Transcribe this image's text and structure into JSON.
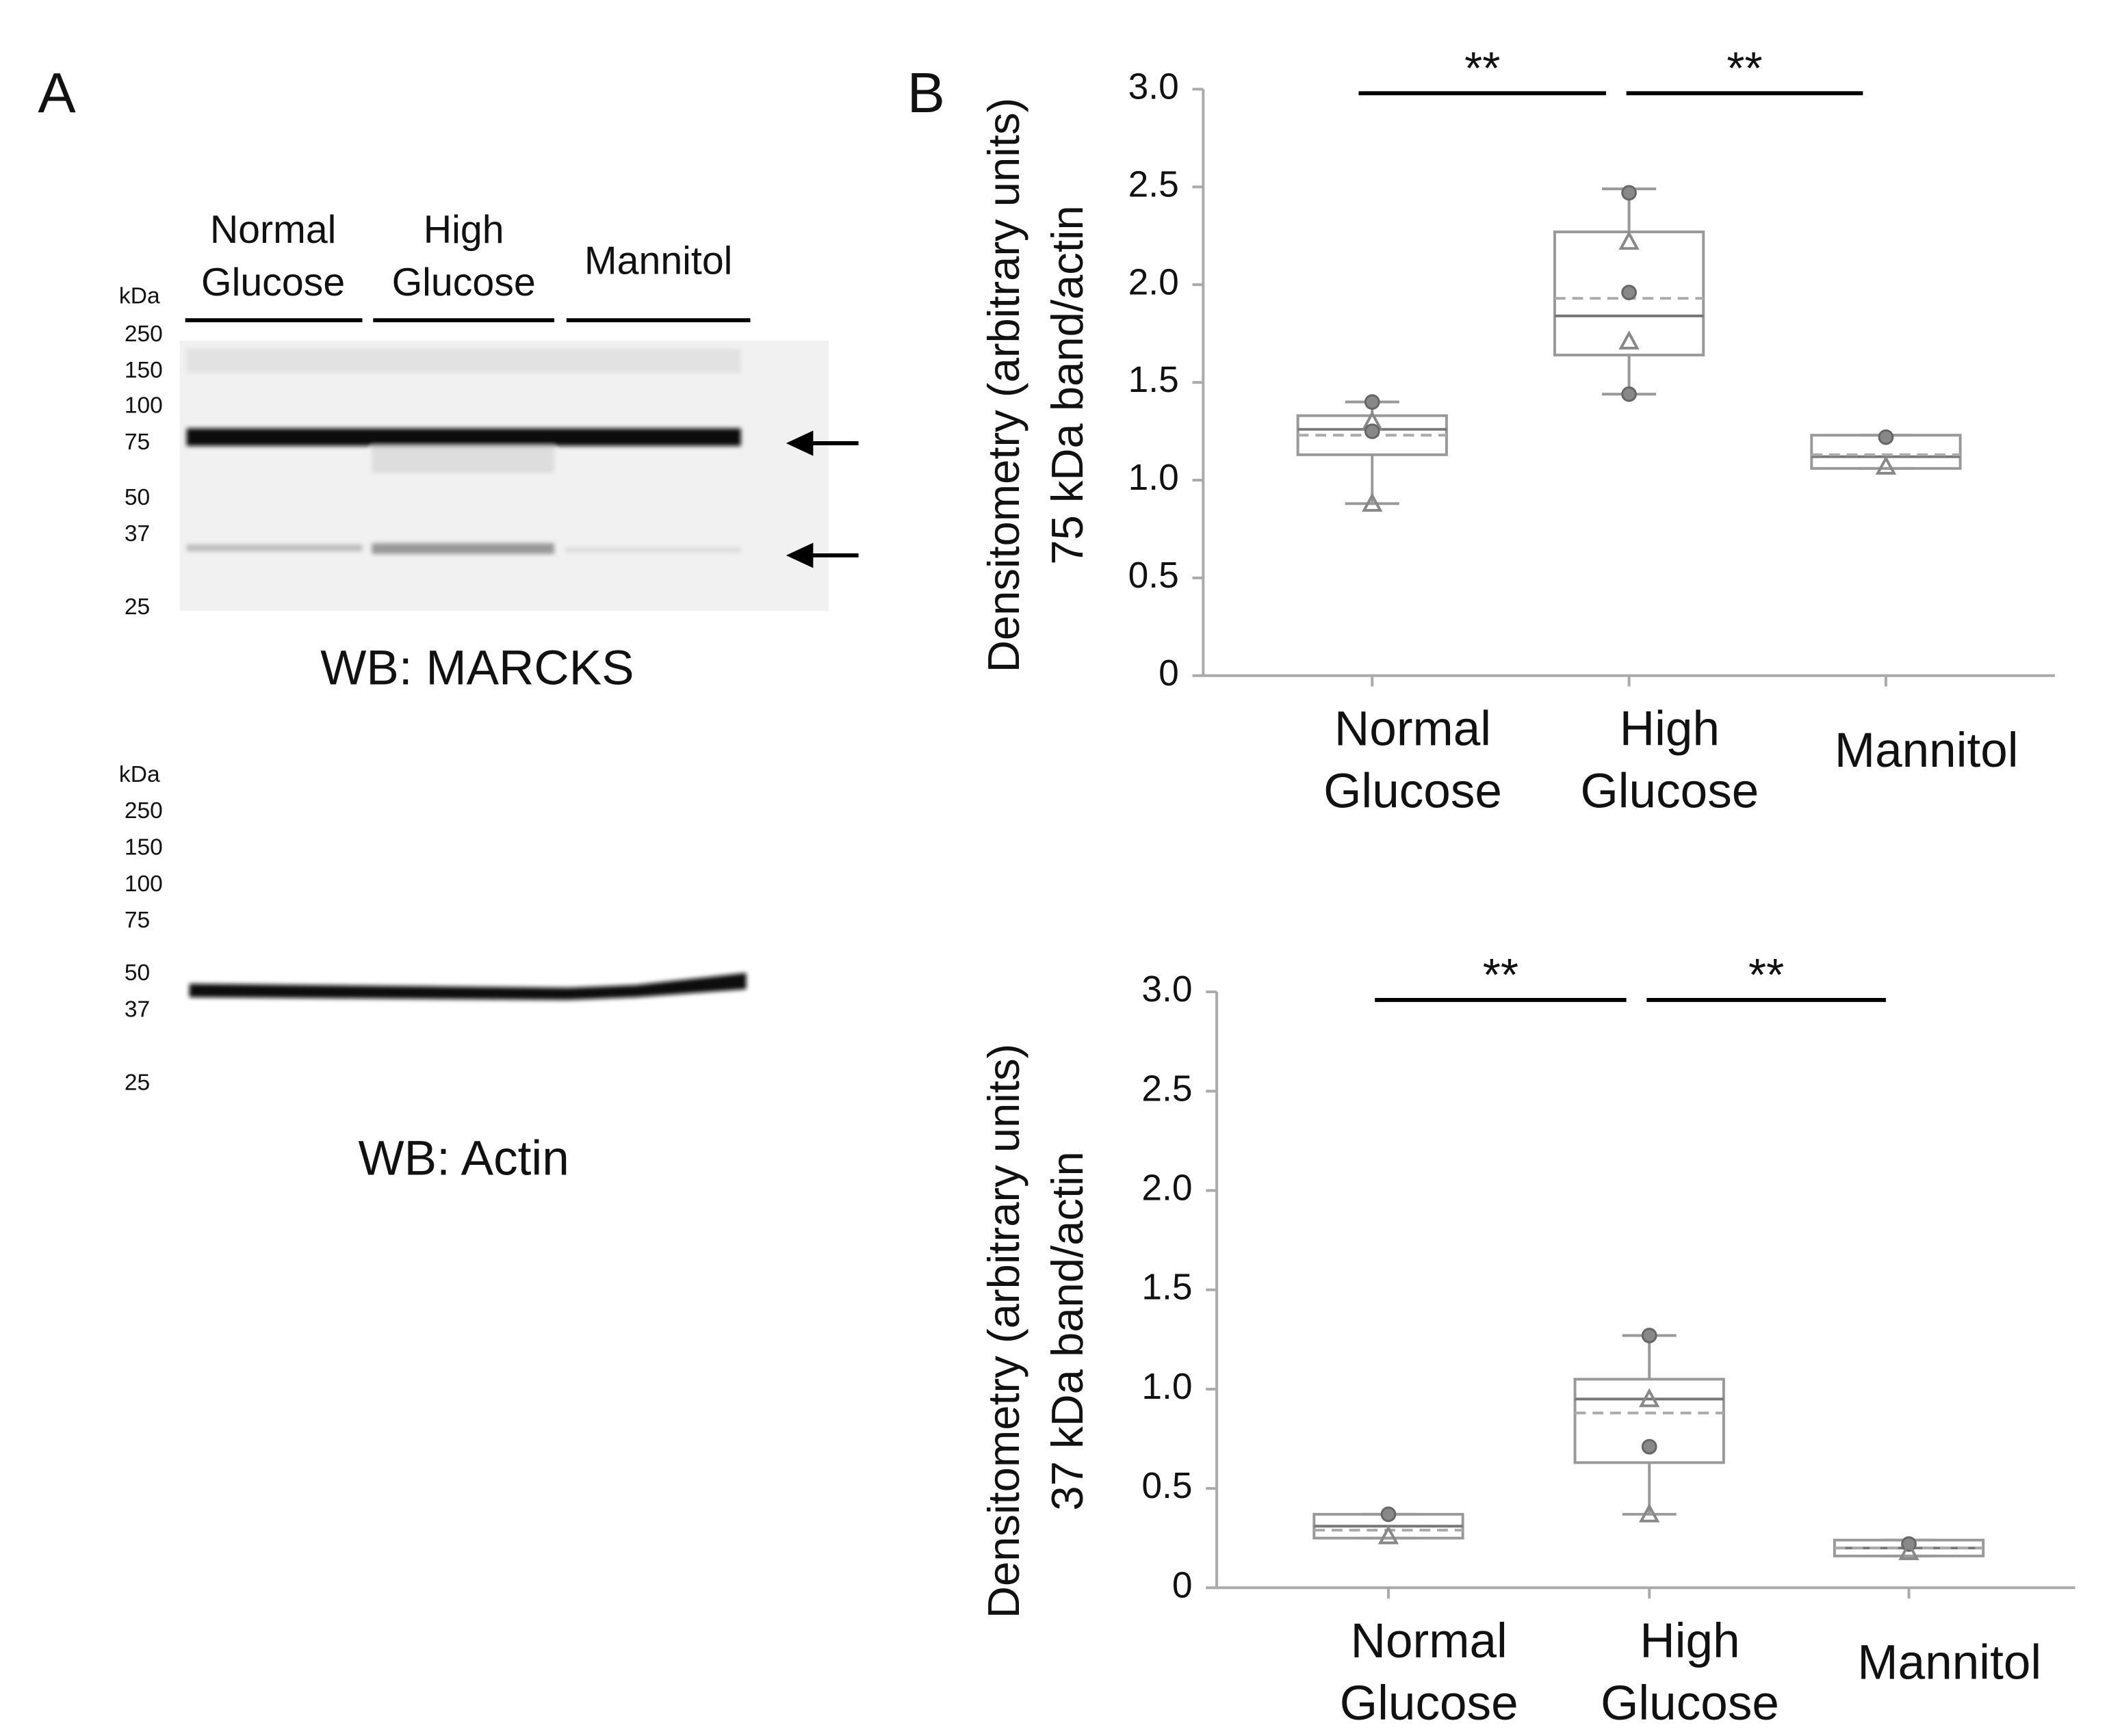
{
  "panel_a": {
    "label": "A",
    "groups": [
      [
        "Normal",
        "Glucose"
      ],
      [
        "High",
        "Glucose"
      ],
      [
        "Mannitol"
      ]
    ],
    "marcks_ladder": [
      "kDa",
      "250",
      "150",
      "100",
      "75",
      "50",
      "37",
      "25"
    ],
    "marcks_caption": "WB:  MARCKS",
    "actin_ladder": [
      "kDa",
      "250",
      "150",
      "100",
      "75",
      "50",
      "37",
      "25"
    ],
    "actin_caption": "WB:  Actin"
  },
  "panel_b": {
    "label": "B"
  },
  "chart_data": [
    {
      "type": "box",
      "ylabel": [
        "Densitometry (arbitrary units)",
        "75 kDa band/actin"
      ],
      "categories": [
        [
          "Normal",
          "Glucose"
        ],
        [
          "High",
          "Glucose"
        ],
        [
          "Mannitol"
        ]
      ],
      "ylim": [
        0,
        3
      ],
      "yticks": [
        0,
        0.5,
        {
          "value": 1,
          "label": "1.0"
        },
        1.5,
        {
          "value": 2,
          "label": "2.0"
        },
        2.5,
        {
          "value": 3,
          "label": "3.0"
        }
      ],
      "color": "#999999",
      "boxes": [
        {
          "min": 0.88,
          "q1": 1.13,
          "median": 1.26,
          "q3": 1.33,
          "max": 1.4,
          "mean": 1.23,
          "points": [
            1.4,
            1.3,
            1.25,
            0.88
          ]
        },
        {
          "min": 1.44,
          "q1": 1.64,
          "median": 1.84,
          "q3": 2.27,
          "max": 2.49,
          "mean": 1.93,
          "points": [
            2.47,
            2.22,
            1.96,
            1.71,
            1.44
          ]
        },
        {
          "min": 1.06,
          "q1": 1.06,
          "median": 1.12,
          "q3": 1.23,
          "max": 1.23,
          "mean": 1.13,
          "points": [
            1.22,
            1.07
          ]
        }
      ],
      "annotations": [
        "**",
        "**"
      ]
    },
    {
      "type": "box",
      "ylabel": [
        "Densitometry (arbitrary units)",
        "37 kDa band/actin"
      ],
      "categories": [
        [
          "Normal",
          "Glucose"
        ],
        [
          "High",
          "Glucose"
        ],
        [
          "Mannitol"
        ]
      ],
      "ylim": [
        0,
        3
      ],
      "yticks": [
        0,
        0.5,
        {
          "value": 1,
          "label": "1.0"
        },
        1.5,
        {
          "value": 2,
          "label": "2.0"
        },
        2.5,
        {
          "value": 3,
          "label": "3.0"
        }
      ],
      "color": "#999999",
      "boxes": [
        {
          "min": 0.25,
          "q1": 0.25,
          "median": 0.31,
          "q3": 0.37,
          "max": 0.37,
          "mean": 0.29,
          "points": [
            0.37,
            0.26
          ]
        },
        {
          "min": 0.37,
          "q1": 0.63,
          "median": 0.95,
          "q3": 1.05,
          "max": 1.27,
          "mean": 0.88,
          "points": [
            1.27,
            0.95,
            0.71,
            0.37
          ]
        },
        {
          "min": 0.16,
          "q1": 0.16,
          "median": 0.2,
          "q3": 0.24,
          "max": 0.24,
          "mean": 0.2,
          "points": [
            0.22,
            0.18
          ]
        }
      ],
      "annotations": [
        "**",
        "**"
      ]
    }
  ]
}
